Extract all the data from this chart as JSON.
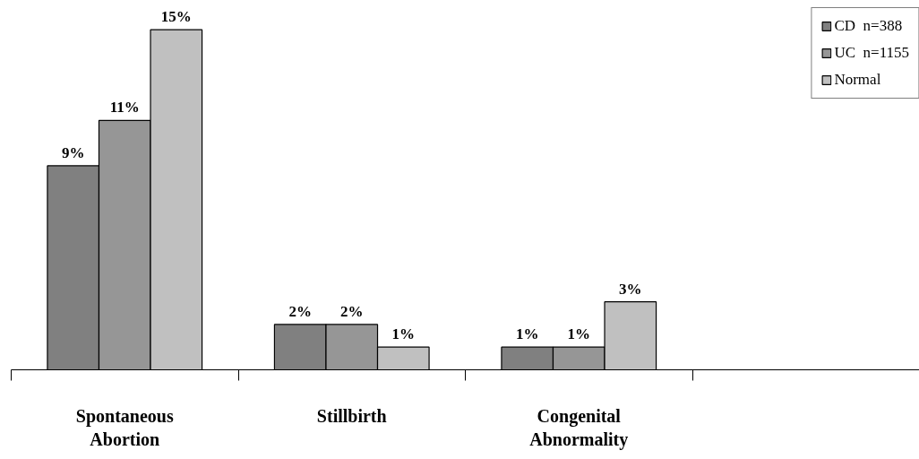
{
  "chart_data": {
    "type": "bar",
    "categories": [
      "Spontaneous Abortion",
      "Stillbirth",
      "Congenital Abnormality",
      null
    ],
    "series": [
      {
        "name": "CD  n=388",
        "color": "#808080",
        "values": [
          9,
          2,
          1,
          null
        ],
        "value_labels": [
          "9%",
          "2%",
          "1%",
          null
        ]
      },
      {
        "name": "UC  n=1155",
        "color": "#969696",
        "values": [
          11,
          2,
          1,
          null
        ],
        "value_labels": [
          "11%",
          "2%",
          "1%",
          null
        ]
      },
      {
        "name": "Normal",
        "color": "#c0c0c0",
        "values": [
          15,
          1,
          3,
          null
        ],
        "value_labels": [
          "15%",
          "1%",
          "3%",
          null
        ]
      }
    ],
    "tick_labels": "x",
    "legend": "top right",
    "grid": false
  }
}
